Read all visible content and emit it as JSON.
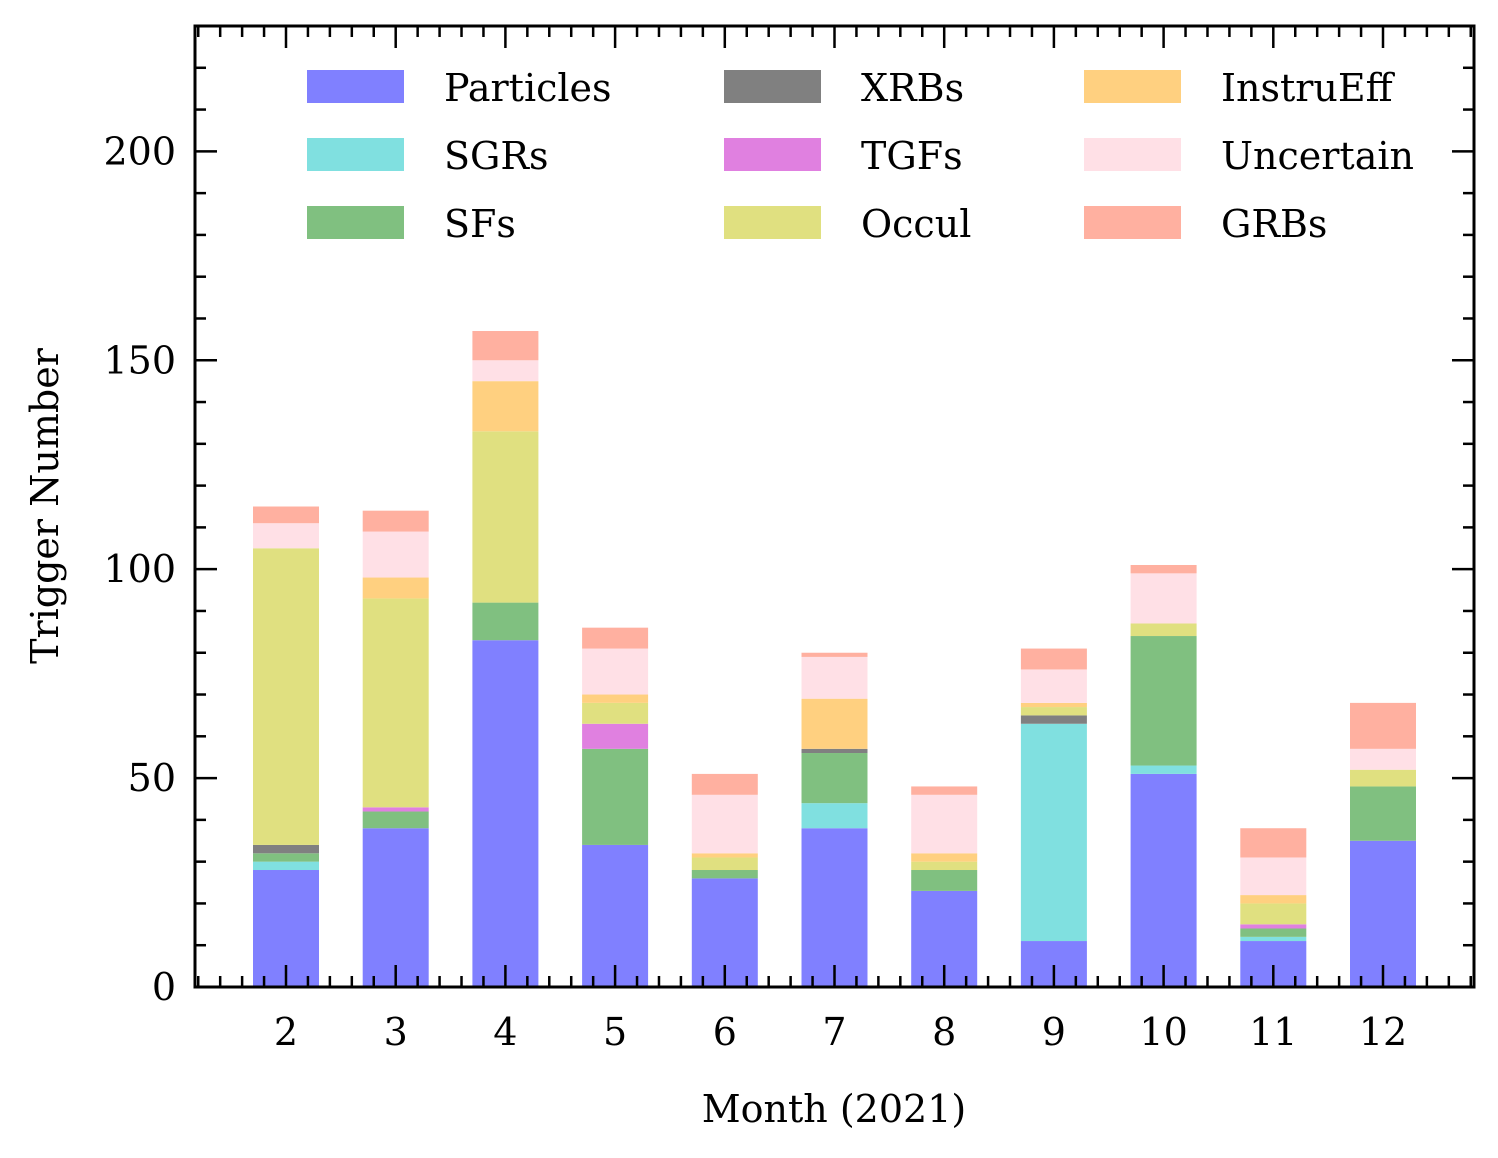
{
  "chart_data": {
    "type": "bar",
    "stacked": true,
    "title": "",
    "xlabel": "Month (2021)",
    "ylabel": "Trigger Number",
    "ylim": [
      0,
      230
    ],
    "yticks": [
      0,
      50,
      100,
      150,
      200
    ],
    "categories": [
      "2",
      "3",
      "4",
      "5",
      "6",
      "7",
      "8",
      "9",
      "10",
      "11",
      "12"
    ],
    "legend_position": "top",
    "legend_columns": 3,
    "series": [
      {
        "name": "Particles",
        "color": "#8080ff",
        "values": [
          28,
          38,
          83,
          34,
          26,
          38,
          23,
          11,
          51,
          11,
          35
        ]
      },
      {
        "name": "SGRs",
        "color": "#80e0e0",
        "values": [
          2,
          0,
          0,
          0,
          0,
          6,
          0,
          52,
          2,
          1,
          0
        ]
      },
      {
        "name": "SFs",
        "color": "#80c080",
        "values": [
          2,
          4,
          9,
          23,
          2,
          12,
          5,
          0,
          31,
          2,
          13
        ]
      },
      {
        "name": "XRBs",
        "color": "#808080",
        "values": [
          2,
          0,
          0,
          0,
          0,
          1,
          0,
          2,
          0,
          0,
          0
        ]
      },
      {
        "name": "TGFs",
        "color": "#e080e0",
        "values": [
          0,
          1,
          0,
          6,
          0,
          0,
          0,
          0,
          0,
          1,
          0
        ]
      },
      {
        "name": "Occul",
        "color": "#e0e080",
        "values": [
          71,
          50,
          41,
          5,
          3,
          0,
          2,
          2,
          3,
          5,
          4
        ]
      },
      {
        "name": "InstruEff",
        "color": "#ffd080",
        "values": [
          0,
          5,
          12,
          2,
          1,
          12,
          2,
          1,
          0,
          2,
          0
        ]
      },
      {
        "name": "Uncertain",
        "color": "#ffe0e6",
        "values": [
          6,
          11,
          5,
          11,
          14,
          10,
          14,
          8,
          12,
          9,
          5
        ]
      },
      {
        "name": "GRBs",
        "color": "#ffb0a0",
        "values": [
          4,
          5,
          7,
          5,
          5,
          1,
          2,
          5,
          2,
          7,
          11
        ]
      }
    ]
  }
}
